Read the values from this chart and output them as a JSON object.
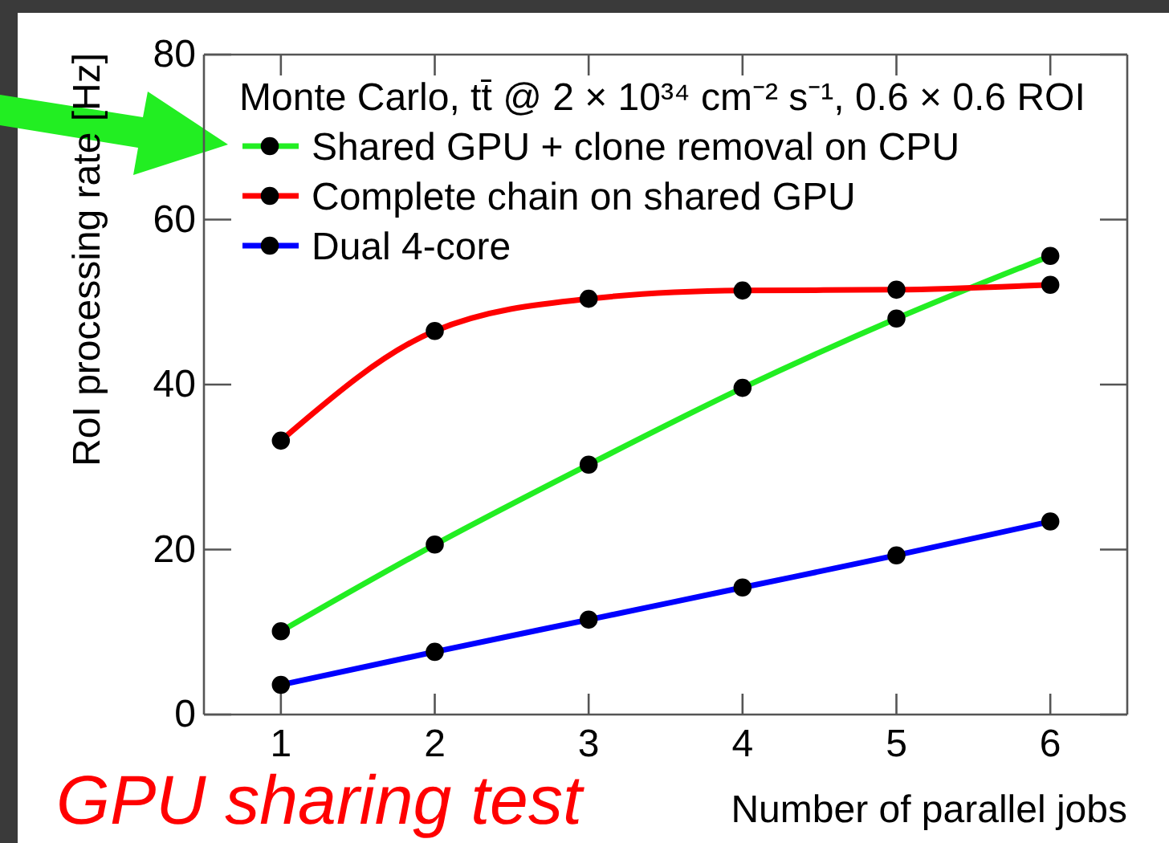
{
  "chart_data": {
    "type": "line",
    "xlabel": "Number of parallel jobs",
    "ylabel": "RoI processing rate [Hz]",
    "legend_title": "Monte Carlo, tt̄ @ 2 × 10³⁴ cm⁻² s⁻¹, 0.6 × 0.6 ROI",
    "annotations": [
      "GPU sharing test"
    ],
    "x": [
      1,
      2,
      3,
      4,
      5,
      6
    ],
    "series": [
      {
        "name": "Shared GPU + clone removal on CPU",
        "color": "#22ee22",
        "values": [
          10.1,
          20.6,
          30.3,
          39.6,
          48.0,
          55.6
        ]
      },
      {
        "name": "Complete chain on shared GPU",
        "color": "#ff0000",
        "values": [
          33.2,
          46.5,
          50.4,
          51.4,
          51.5,
          52.1
        ]
      },
      {
        "name": "Dual 4-core",
        "color": "#0000ff",
        "values": [
          3.6,
          7.6,
          11.5,
          15.4,
          19.3,
          23.4
        ]
      }
    ],
    "xlim": [
      0.5,
      6.5
    ],
    "xticks": [
      1,
      2,
      3,
      4,
      5,
      6
    ],
    "ylim": [
      0,
      80
    ],
    "yticks": [
      0,
      20,
      40,
      60,
      80
    ],
    "legend": "top left",
    "marker": "circle"
  }
}
